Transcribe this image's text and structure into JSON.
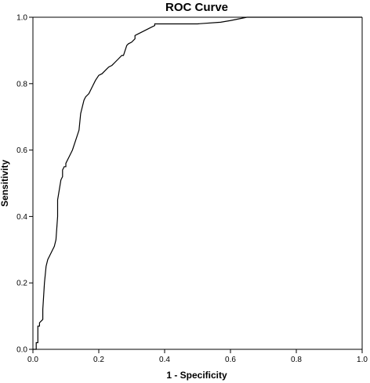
{
  "chart_data": {
    "type": "line",
    "title": "ROC Curve",
    "xlabel": "1 - Specificity",
    "ylabel": "Sensitivity",
    "xlim": [
      0,
      1
    ],
    "ylim": [
      0,
      1
    ],
    "x_ticks": [
      "0.0",
      "0.2",
      "0.4",
      "0.6",
      "0.8",
      "1.0"
    ],
    "y_ticks": [
      "0.0",
      "0.2",
      "0.4",
      "0.6",
      "0.8",
      "1.0"
    ],
    "grid": false,
    "legend": "none",
    "line_color": "#000000",
    "series": [
      {
        "x": [
          0.0,
          0.01,
          0.01,
          0.015,
          0.015,
          0.02,
          0.02,
          0.03,
          0.03,
          0.035,
          0.04,
          0.045,
          0.05,
          0.055,
          0.065,
          0.07,
          0.075,
          0.075,
          0.08,
          0.085,
          0.09,
          0.09,
          0.095,
          0.1,
          0.1,
          0.105,
          0.11,
          0.12,
          0.13,
          0.14,
          0.145,
          0.155,
          0.16,
          0.17,
          0.18,
          0.19,
          0.2,
          0.21,
          0.22,
          0.23,
          0.24,
          0.25,
          0.26,
          0.27,
          0.275,
          0.28,
          0.285,
          0.29,
          0.3,
          0.31,
          0.31,
          0.32,
          0.33,
          0.34,
          0.35,
          0.36,
          0.37,
          0.37,
          0.4,
          0.5,
          0.57,
          0.6,
          0.65,
          0.7,
          1.0
        ],
        "y": [
          0.0,
          0.0,
          0.02,
          0.02,
          0.07,
          0.07,
          0.08,
          0.09,
          0.12,
          0.2,
          0.25,
          0.27,
          0.28,
          0.29,
          0.31,
          0.33,
          0.4,
          0.45,
          0.48,
          0.51,
          0.52,
          0.54,
          0.55,
          0.55,
          0.56,
          0.57,
          0.58,
          0.6,
          0.63,
          0.66,
          0.71,
          0.75,
          0.76,
          0.77,
          0.79,
          0.81,
          0.825,
          0.83,
          0.84,
          0.85,
          0.855,
          0.865,
          0.875,
          0.885,
          0.885,
          0.9,
          0.915,
          0.92,
          0.925,
          0.935,
          0.945,
          0.95,
          0.955,
          0.96,
          0.965,
          0.97,
          0.975,
          0.98,
          0.98,
          0.98,
          0.985,
          0.99,
          1.0,
          1.0,
          1.0
        ]
      }
    ]
  }
}
